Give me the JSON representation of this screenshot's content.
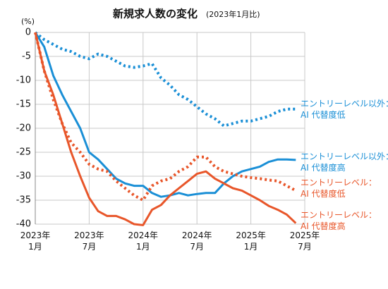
{
  "chart_data": {
    "type": "line",
    "title": "新規求人数の変化",
    "subtitle": "(2023年1月比)",
    "y_label": "(%)",
    "x": [
      0,
      1,
      2,
      3,
      4,
      5,
      6,
      7,
      8,
      9,
      10,
      11,
      12,
      13,
      14,
      15,
      16,
      17,
      18,
      19,
      20,
      21,
      22,
      23,
      24,
      25,
      26,
      27,
      28,
      29
    ],
    "xlim": [
      0,
      30
    ],
    "xticks": [
      {
        "value": 0,
        "label": "2023年 1月"
      },
      {
        "value": 6,
        "label": "2023年 7月"
      },
      {
        "value": 12,
        "label": "2024年 1月"
      },
      {
        "value": 18,
        "label": "2024年 7月"
      },
      {
        "value": 24,
        "label": "2025年 1月"
      },
      {
        "value": 30,
        "label": "2025年 7月"
      }
    ],
    "ylim": [
      -40,
      0
    ],
    "yticks": [
      0,
      -5,
      -10,
      -15,
      -20,
      -25,
      -30,
      -35,
      -40
    ],
    "grid": true,
    "series": [
      {
        "name": "エントリーレベル以外：AI 代替度低",
        "color": "#1a8fd6",
        "dashed": true,
        "values": [
          0,
          -1.5,
          -2.5,
          -3.5,
          -4,
          -5,
          -5.5,
          -4.5,
          -5,
          -6,
          -7,
          -7.3,
          -7,
          -6.5,
          -9.5,
          -11,
          -13,
          -14,
          -15.5,
          -17,
          -18,
          -19.5,
          -19,
          -18.5,
          -18.5,
          -18,
          -17.5,
          -16.5,
          -16,
          -16
        ]
      },
      {
        "name": "エントリーレベル以外：AI 代替度高",
        "color": "#1a8fd6",
        "dashed": false,
        "values": [
          0,
          -3,
          -9,
          -13,
          -16.5,
          -20,
          -25,
          -26.5,
          -28.5,
          -30.5,
          -31.5,
          -32,
          -32,
          -33.5,
          -34.3,
          -34,
          -33.5,
          -34,
          -33.7,
          -33.5,
          -33.5,
          -31.5,
          -30,
          -29,
          -28.5,
          -28,
          -27,
          -26.5,
          -26.5,
          -26.6
        ]
      },
      {
        "name": "エントリーレベル：AI 代替度低",
        "color": "#e8562a",
        "dashed": true,
        "values": [
          0,
          -8,
          -14,
          -19,
          -23,
          -25,
          -27.5,
          -28.5,
          -29,
          -31,
          -32.5,
          -34,
          -35,
          -32,
          -31,
          -30.5,
          -29,
          -28,
          -26,
          -26,
          -28,
          -29,
          -29.5,
          -30,
          -30.3,
          -30.5,
          -30.8,
          -31,
          -32,
          -33
        ]
      },
      {
        "name": "エントリーレベル：AI 代替度高",
        "color": "#e8562a",
        "dashed": false,
        "values": [
          0,
          -8,
          -13,
          -19,
          -25,
          -30,
          -34.5,
          -37.3,
          -38.3,
          -38.3,
          -39,
          -40,
          -40.2,
          -37,
          -36,
          -34,
          -32.5,
          -31,
          -29.5,
          -29,
          -30.5,
          -31.5,
          -32.5,
          -33,
          -34,
          -35,
          -36.2,
          -37,
          -38,
          -39.8
        ]
      }
    ]
  }
}
